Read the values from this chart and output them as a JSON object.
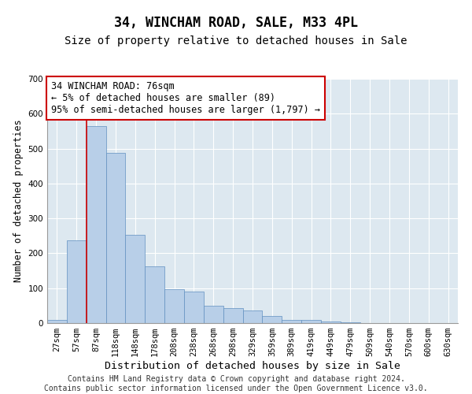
{
  "title": "34, WINCHAM ROAD, SALE, M33 4PL",
  "subtitle": "Size of property relative to detached houses in Sale",
  "xlabel": "Distribution of detached houses by size in Sale",
  "ylabel": "Number of detached properties",
  "bins": [
    "27sqm",
    "57sqm",
    "87sqm",
    "118sqm",
    "148sqm",
    "178sqm",
    "208sqm",
    "238sqm",
    "268sqm",
    "298sqm",
    "329sqm",
    "359sqm",
    "389sqm",
    "419sqm",
    "449sqm",
    "479sqm",
    "509sqm",
    "540sqm",
    "570sqm",
    "600sqm",
    "630sqm"
  ],
  "values": [
    10,
    237,
    565,
    487,
    252,
    163,
    98,
    90,
    50,
    44,
    37,
    20,
    10,
    8,
    5,
    3,
    0,
    1,
    0,
    0,
    0
  ],
  "bar_color": "#b8cfe8",
  "bar_edge_color": "#6090c0",
  "bar_linewidth": 0.5,
  "vline_x": 1.5,
  "vline_color": "#cc0000",
  "vline_linewidth": 1.2,
  "annotation_text": "34 WINCHAM ROAD: 76sqm\n← 5% of detached houses are smaller (89)\n95% of semi-detached houses are larger (1,797) →",
  "annotation_box_color": "#ffffff",
  "annotation_box_edge": "#cc0000",
  "ylim": [
    0,
    700
  ],
  "yticks": [
    0,
    100,
    200,
    300,
    400,
    500,
    600,
    700
  ],
  "axes_background": "#dde8f0",
  "grid_color": "#ffffff",
  "footer": "Contains HM Land Registry data © Crown copyright and database right 2024.\nContains public sector information licensed under the Open Government Licence v3.0.",
  "title_fontsize": 12,
  "subtitle_fontsize": 10,
  "xlabel_fontsize": 9.5,
  "ylabel_fontsize": 8.5,
  "tick_fontsize": 7.5,
  "footer_fontsize": 7,
  "ann_fontsize": 8.5
}
